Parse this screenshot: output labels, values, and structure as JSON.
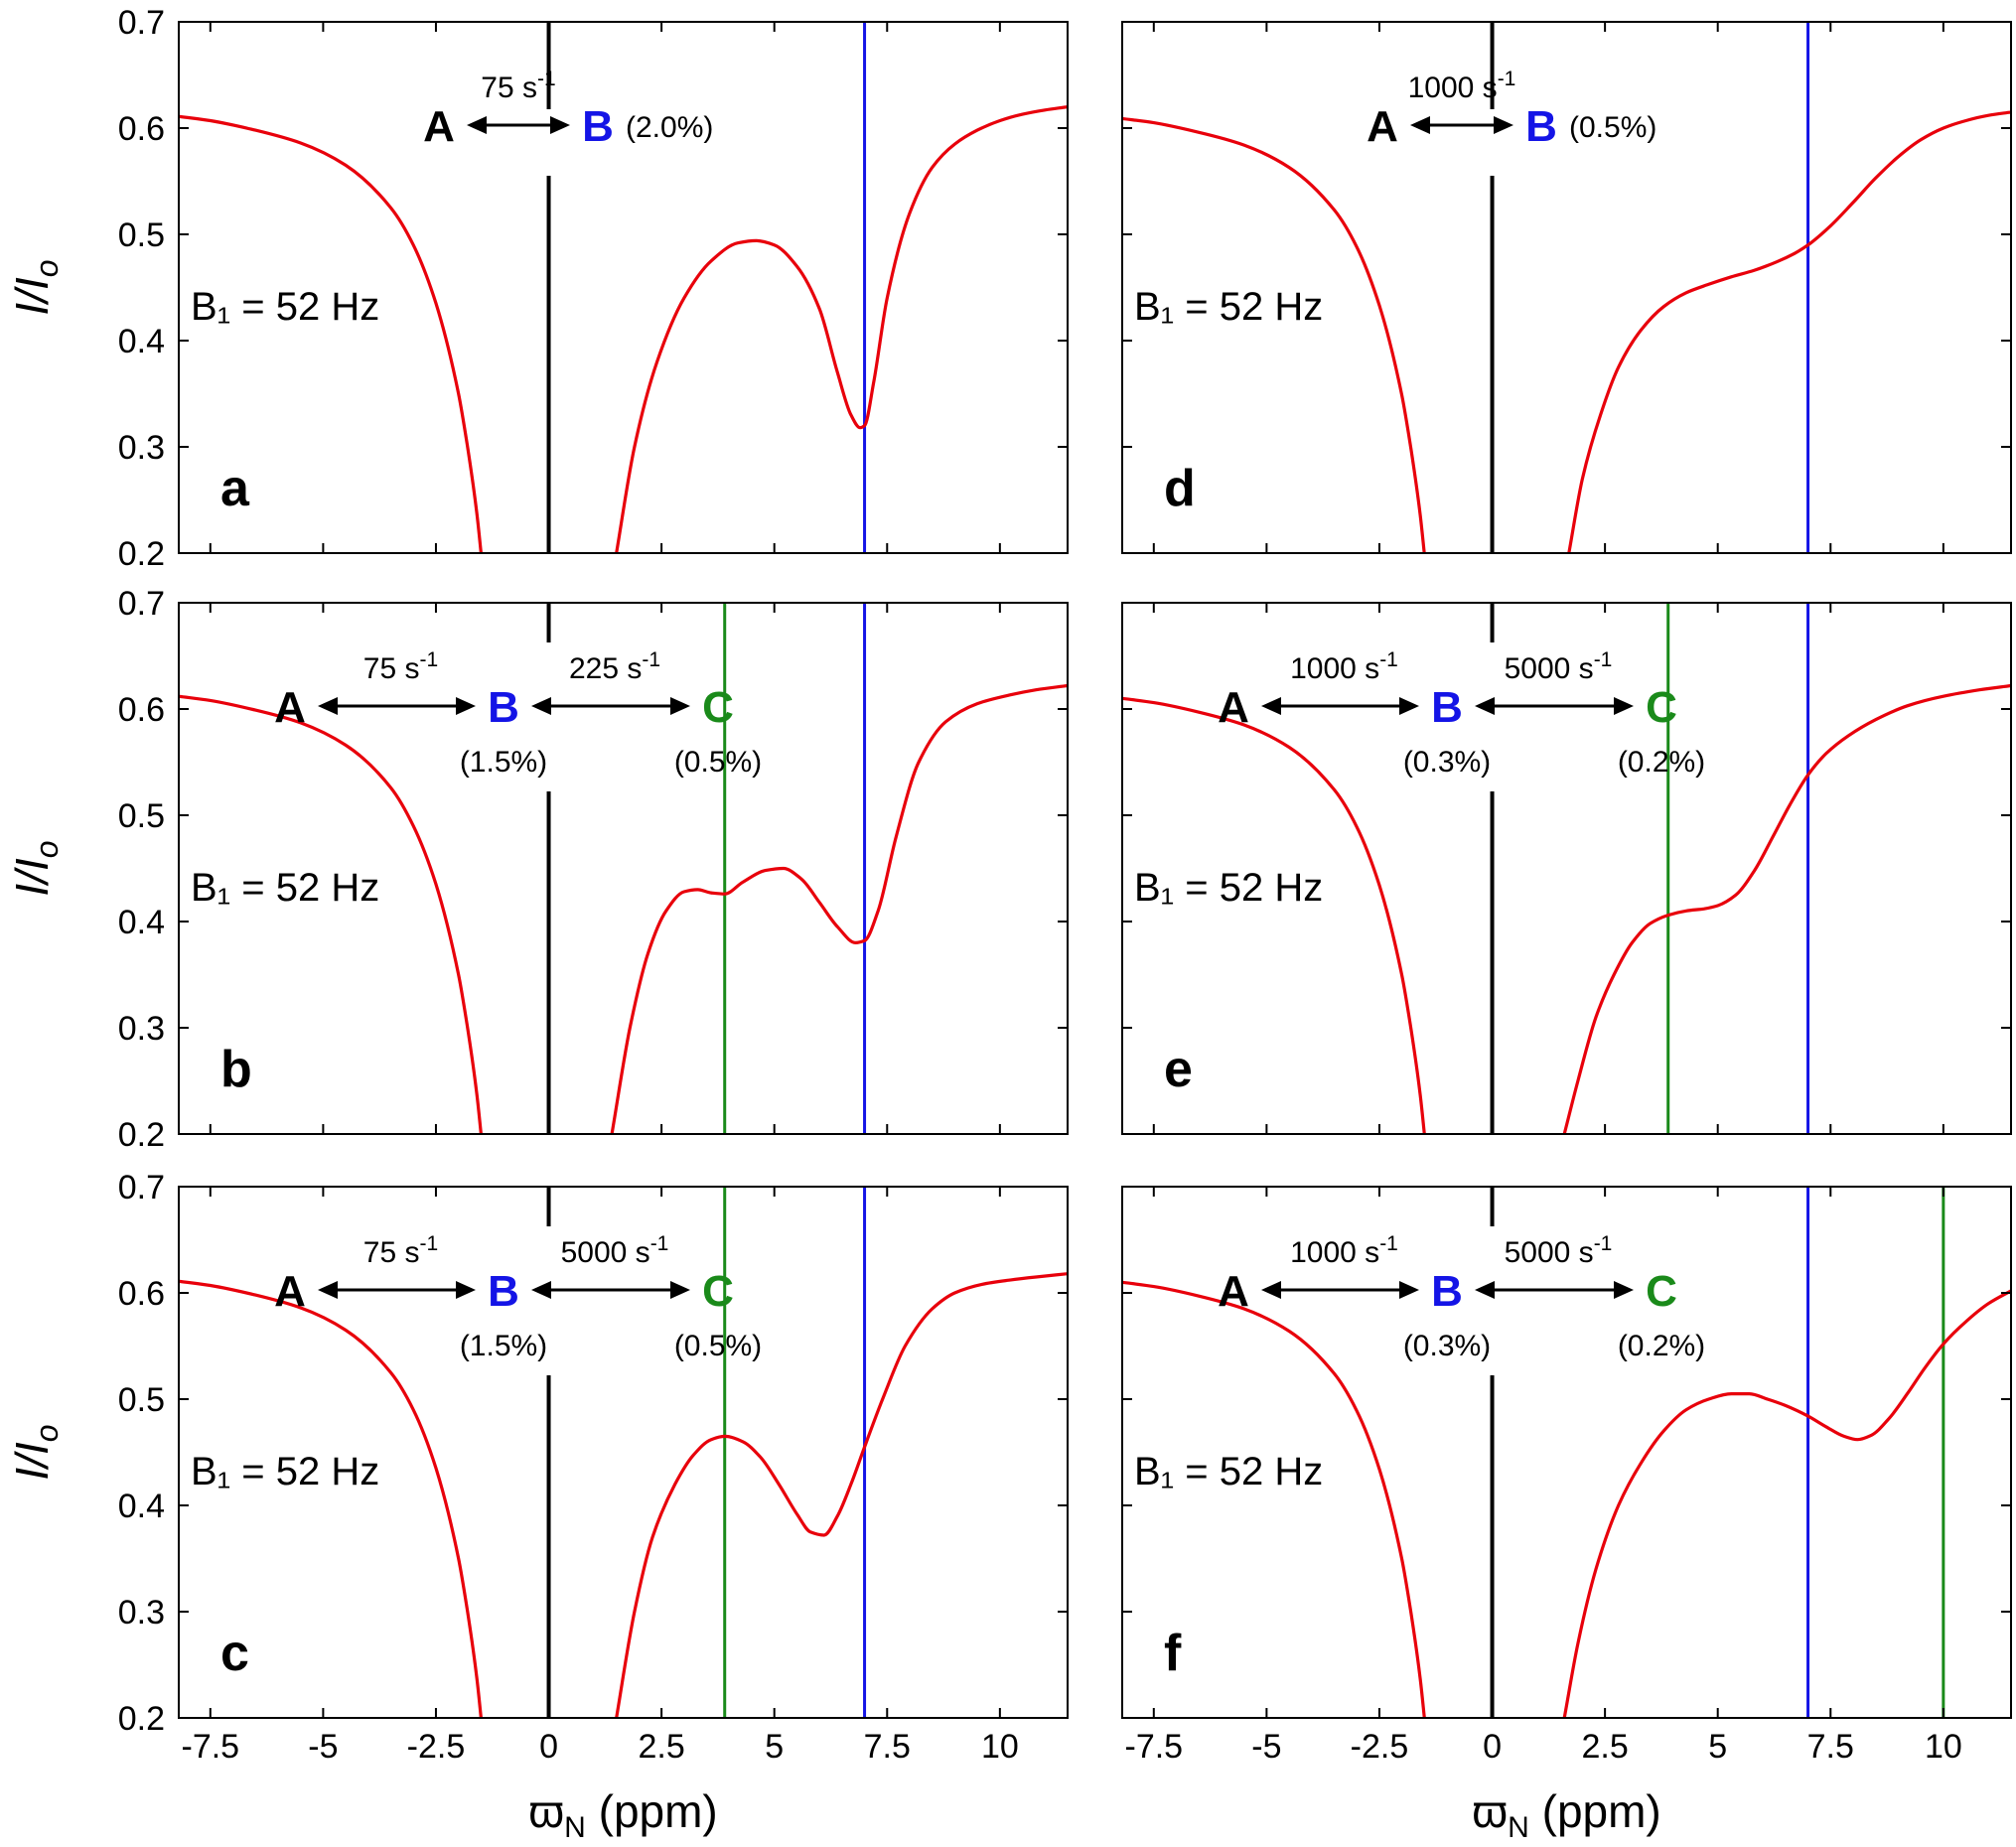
{
  "colors": {
    "curve": "#e8000b",
    "vline_major": "#000000",
    "vline_B": "#1414e6",
    "vline_C": "#1a8a1a",
    "state_A": "#000000",
    "state_B": "#1414e6",
    "state_C": "#1a8a1a",
    "axes": "#000000"
  },
  "axis_text": {
    "y_label": "I/I",
    "y_label_sub": "o",
    "x_label": "ϖ",
    "x_label_sub": "N",
    "x_label_unit": "(ppm)"
  },
  "chart_data": [
    {
      "type": "line",
      "panel": "a",
      "xlim": [
        -8.2,
        11.5
      ],
      "ylim": [
        0.2,
        0.7
      ],
      "x_ticks": [
        -7.5,
        -5,
        -2.5,
        0,
        2.5,
        5,
        7.5,
        10
      ],
      "x_tick_labels": [
        "-7.5",
        "-5",
        "-2.5",
        "0",
        "2.5",
        "5",
        "7.5",
        "10"
      ],
      "y_ticks": [
        0.2,
        0.3,
        0.4,
        0.5,
        0.6,
        0.7
      ],
      "y_tick_labels": [
        "0.2",
        "0.3",
        "0.4",
        "0.5",
        "0.6",
        "0.7"
      ],
      "show_x_tick_labels": false,
      "show_x_title": false,
      "b1_label": "B₁ = 52 Hz",
      "scheme": {
        "A": "A",
        "B": "B",
        "rate1": "75 s",
        "rate1_exp": "-1",
        "popB_inline": "(2.0%)"
      },
      "vlines": [
        {
          "x": 0,
          "role": "main"
        },
        {
          "x": 7,
          "role": "B"
        }
      ],
      "series": [
        {
          "name": "left",
          "x": [
            -8.2,
            -7.5,
            -6.5,
            -5.5,
            -4.5,
            -3.5,
            -3.0,
            -2.5,
            -2.0,
            -1.8,
            -1.6,
            -1.5
          ],
          "y": [
            0.611,
            0.607,
            0.598,
            0.586,
            0.565,
            0.525,
            0.49,
            0.435,
            0.35,
            0.3,
            0.24,
            0.2
          ]
        },
        {
          "name": "right",
          "x": [
            1.5,
            1.9,
            2.4,
            3.0,
            3.6,
            4.2,
            4.6,
            5.0,
            5.5,
            6.0,
            6.4,
            6.7,
            6.9,
            7.0,
            7.2,
            7.5,
            8.0,
            8.5,
            9.0,
            9.5,
            10.0,
            10.5,
            11.0,
            11.5
          ],
          "y": [
            0.2,
            0.3,
            0.38,
            0.44,
            0.475,
            0.492,
            0.494,
            0.49,
            0.47,
            0.43,
            0.37,
            0.33,
            0.318,
            0.32,
            0.36,
            0.44,
            0.52,
            0.563,
            0.585,
            0.598,
            0.607,
            0.613,
            0.617,
            0.62
          ]
        }
      ]
    },
    {
      "type": "line",
      "panel": "b",
      "xlim": [
        -8.2,
        11.5
      ],
      "ylim": [
        0.2,
        0.7
      ],
      "x_ticks": [
        -7.5,
        -5,
        -2.5,
        0,
        2.5,
        5,
        7.5,
        10
      ],
      "x_tick_labels": [
        "-7.5",
        "-5",
        "-2.5",
        "0",
        "2.5",
        "5",
        "7.5",
        "10"
      ],
      "y_ticks": [
        0.2,
        0.3,
        0.4,
        0.5,
        0.6,
        0.7
      ],
      "y_tick_labels": [
        "0.2",
        "0.3",
        "0.4",
        "0.5",
        "0.6",
        "0.7"
      ],
      "show_x_tick_labels": false,
      "show_x_title": false,
      "b1_label": "B₁ = 52 Hz",
      "scheme": {
        "A": "A",
        "B": "B",
        "C": "C",
        "rate1": "75 s",
        "rate1_exp": "-1",
        "rate2": "225 s",
        "rate2_exp": "-1",
        "popB": "(1.5%)",
        "popC": "(0.5%)"
      },
      "vlines": [
        {
          "x": 0,
          "role": "main"
        },
        {
          "x": 3.9,
          "role": "C"
        },
        {
          "x": 7,
          "role": "B"
        }
      ],
      "series": [
        {
          "name": "left",
          "x": [
            -8.2,
            -7.5,
            -6.5,
            -5.5,
            -4.5,
            -3.5,
            -3.0,
            -2.5,
            -2.0,
            -1.8,
            -1.6,
            -1.5
          ],
          "y": [
            0.612,
            0.608,
            0.599,
            0.587,
            0.566,
            0.526,
            0.49,
            0.435,
            0.35,
            0.3,
            0.24,
            0.2
          ]
        },
        {
          "name": "right",
          "x": [
            1.4,
            1.8,
            2.2,
            2.6,
            3.0,
            3.3,
            3.6,
            3.9,
            4.3,
            4.8,
            5.2,
            5.6,
            6.0,
            6.4,
            6.8,
            7.0,
            7.3,
            7.7,
            8.2,
            8.8,
            9.5,
            10.2,
            10.8,
            11.5
          ],
          "y": [
            0.2,
            0.3,
            0.37,
            0.41,
            0.428,
            0.43,
            0.427,
            0.426,
            0.437,
            0.448,
            0.45,
            0.44,
            0.418,
            0.395,
            0.38,
            0.382,
            0.41,
            0.48,
            0.55,
            0.588,
            0.605,
            0.613,
            0.618,
            0.622
          ]
        }
      ]
    },
    {
      "type": "line",
      "panel": "c",
      "xlim": [
        -8.2,
        11.5
      ],
      "ylim": [
        0.2,
        0.7
      ],
      "x_ticks": [
        -7.5,
        -5,
        -2.5,
        0,
        2.5,
        5,
        7.5,
        10
      ],
      "x_tick_labels": [
        "-7.5",
        "-5",
        "-2.5",
        "0",
        "2.5",
        "5",
        "7.5",
        "10"
      ],
      "y_ticks": [
        0.2,
        0.3,
        0.4,
        0.5,
        0.6,
        0.7
      ],
      "y_tick_labels": [
        "0.2",
        "0.3",
        "0.4",
        "0.5",
        "0.6",
        "0.7"
      ],
      "show_x_tick_labels": true,
      "show_x_title": true,
      "b1_label": "B₁ = 52 Hz",
      "scheme": {
        "A": "A",
        "B": "B",
        "C": "C",
        "rate1": "75 s",
        "rate1_exp": "-1",
        "rate2": "5000 s",
        "rate2_exp": "-1",
        "popB": "(1.5%)",
        "popC": "(0.5%)"
      },
      "vlines": [
        {
          "x": 0,
          "role": "main"
        },
        {
          "x": 3.9,
          "role": "C"
        },
        {
          "x": 7,
          "role": "B"
        }
      ],
      "series": [
        {
          "name": "left",
          "x": [
            -8.2,
            -7.5,
            -6.5,
            -5.5,
            -4.5,
            -3.5,
            -3.0,
            -2.5,
            -2.0,
            -1.8,
            -1.6,
            -1.5
          ],
          "y": [
            0.611,
            0.607,
            0.598,
            0.586,
            0.565,
            0.525,
            0.49,
            0.435,
            0.35,
            0.3,
            0.24,
            0.2
          ]
        },
        {
          "name": "right",
          "x": [
            1.5,
            1.9,
            2.3,
            2.8,
            3.2,
            3.6,
            3.9,
            4.3,
            4.7,
            5.1,
            5.5,
            5.8,
            6.1,
            6.4,
            6.7,
            7.0,
            7.4,
            7.9,
            8.5,
            9.0,
            9.6,
            10.2,
            10.8,
            11.5
          ],
          "y": [
            0.2,
            0.3,
            0.37,
            0.42,
            0.447,
            0.462,
            0.465,
            0.46,
            0.445,
            0.42,
            0.392,
            0.375,
            0.372,
            0.39,
            0.42,
            0.455,
            0.5,
            0.55,
            0.585,
            0.6,
            0.608,
            0.612,
            0.615,
            0.618
          ]
        }
      ]
    },
    {
      "type": "line",
      "panel": "d",
      "xlim": [
        -8.2,
        11.5
      ],
      "ylim": [
        0.2,
        0.7
      ],
      "x_ticks": [
        -7.5,
        -5,
        -2.5,
        0,
        2.5,
        5,
        7.5,
        10
      ],
      "x_tick_labels": [
        "-7.5",
        "-5",
        "-2.5",
        "0",
        "2.5",
        "5",
        "7.5",
        "10"
      ],
      "y_ticks": [
        0.2,
        0.3,
        0.4,
        0.5,
        0.6,
        0.7
      ],
      "y_tick_labels": [
        "0.2",
        "0.3",
        "0.4",
        "0.5",
        "0.6",
        "0.7"
      ],
      "show_x_tick_labels": false,
      "show_x_title": false,
      "b1_label": "B₁ = 52 Hz",
      "scheme": {
        "A": "A",
        "B": "B",
        "rate1": "1000 s",
        "rate1_exp": "-1",
        "popB_inline": "(0.5%)"
      },
      "vlines": [
        {
          "x": 0,
          "role": "main"
        },
        {
          "x": 7,
          "role": "B"
        }
      ],
      "series": [
        {
          "name": "left",
          "x": [
            -8.2,
            -7.5,
            -6.5,
            -5.5,
            -4.5,
            -3.5,
            -3.0,
            -2.5,
            -2.0,
            -1.8,
            -1.6,
            -1.5
          ],
          "y": [
            0.609,
            0.605,
            0.596,
            0.584,
            0.563,
            0.523,
            0.488,
            0.433,
            0.348,
            0.298,
            0.238,
            0.198
          ]
        },
        {
          "name": "right",
          "x": [
            1.7,
            2.0,
            2.4,
            2.8,
            3.3,
            3.8,
            4.3,
            4.8,
            5.3,
            5.8,
            6.3,
            6.7,
            7.0,
            7.5,
            8.0,
            8.5,
            9.0,
            9.5,
            10.0,
            10.5,
            11.0,
            11.5
          ],
          "y": [
            0.2,
            0.27,
            0.33,
            0.375,
            0.41,
            0.432,
            0.445,
            0.453,
            0.46,
            0.466,
            0.474,
            0.482,
            0.49,
            0.508,
            0.53,
            0.553,
            0.573,
            0.589,
            0.6,
            0.607,
            0.612,
            0.615
          ]
        }
      ]
    },
    {
      "type": "line",
      "panel": "e",
      "xlim": [
        -8.2,
        11.5
      ],
      "ylim": [
        0.2,
        0.7
      ],
      "x_ticks": [
        -7.5,
        -5,
        -2.5,
        0,
        2.5,
        5,
        7.5,
        10
      ],
      "x_tick_labels": [
        "-7.5",
        "-5",
        "-2.5",
        "0",
        "2.5",
        "5",
        "7.5",
        "10"
      ],
      "y_ticks": [
        0.2,
        0.3,
        0.4,
        0.5,
        0.6,
        0.7
      ],
      "y_tick_labels": [
        "0.2",
        "0.3",
        "0.4",
        "0.5",
        "0.6",
        "0.7"
      ],
      "show_x_tick_labels": false,
      "show_x_title": false,
      "b1_label": "B₁ = 52 Hz",
      "scheme": {
        "A": "A",
        "B": "B",
        "C": "C",
        "rate1": "1000 s",
        "rate1_exp": "-1",
        "rate2": "5000 s",
        "rate2_exp": "-1",
        "popB": "(0.3%)",
        "popC": "(0.2%)"
      },
      "vlines": [
        {
          "x": 0,
          "role": "main"
        },
        {
          "x": 3.9,
          "role": "C"
        },
        {
          "x": 7,
          "role": "B"
        }
      ],
      "series": [
        {
          "name": "left",
          "x": [
            -8.2,
            -7.5,
            -6.5,
            -5.5,
            -4.5,
            -3.5,
            -3.0,
            -2.5,
            -2.0,
            -1.8,
            -1.6,
            -1.5
          ],
          "y": [
            0.61,
            0.606,
            0.597,
            0.585,
            0.564,
            0.524,
            0.489,
            0.434,
            0.349,
            0.299,
            0.239,
            0.199
          ]
        },
        {
          "name": "right",
          "x": [
            1.6,
            1.9,
            2.3,
            2.7,
            3.1,
            3.5,
            3.9,
            4.3,
            4.7,
            5.0,
            5.4,
            5.8,
            6.2,
            6.6,
            7.0,
            7.4,
            7.9,
            8.5,
            9.2,
            10.0,
            10.8,
            11.5
          ],
          "y": [
            0.2,
            0.25,
            0.31,
            0.35,
            0.38,
            0.398,
            0.406,
            0.41,
            0.412,
            0.415,
            0.425,
            0.447,
            0.478,
            0.51,
            0.538,
            0.558,
            0.575,
            0.59,
            0.603,
            0.612,
            0.618,
            0.622
          ]
        }
      ]
    },
    {
      "type": "line",
      "panel": "f",
      "xlim": [
        -8.2,
        11.5
      ],
      "ylim": [
        0.2,
        0.7
      ],
      "x_ticks": [
        -7.5,
        -5,
        -2.5,
        0,
        2.5,
        5,
        7.5,
        10
      ],
      "x_tick_labels": [
        "-7.5",
        "-5",
        "-2.5",
        "0",
        "2.5",
        "5",
        "7.5",
        "10"
      ],
      "y_ticks": [
        0.2,
        0.3,
        0.4,
        0.5,
        0.6,
        0.7
      ],
      "y_tick_labels": [
        "0.2",
        "0.3",
        "0.4",
        "0.5",
        "0.6",
        "0.7"
      ],
      "show_x_tick_labels": true,
      "show_x_title": true,
      "b1_label": "B₁ = 52 Hz",
      "scheme": {
        "A": "A",
        "B": "B",
        "C": "C",
        "rate1": "1000 s",
        "rate1_exp": "-1",
        "rate2": "5000 s",
        "rate2_exp": "-1",
        "popB": "(0.3%)",
        "popC": "(0.2%)"
      },
      "vlines": [
        {
          "x": 0,
          "role": "main"
        },
        {
          "x": 7,
          "role": "B"
        },
        {
          "x": 10,
          "role": "C"
        }
      ],
      "series": [
        {
          "name": "left",
          "x": [
            -8.2,
            -7.5,
            -6.5,
            -5.5,
            -4.5,
            -3.5,
            -3.0,
            -2.5,
            -2.0,
            -1.8,
            -1.6,
            -1.5
          ],
          "y": [
            0.61,
            0.606,
            0.597,
            0.585,
            0.564,
            0.524,
            0.489,
            0.434,
            0.349,
            0.299,
            0.239,
            0.199
          ]
        },
        {
          "name": "right",
          "x": [
            1.6,
            1.9,
            2.3,
            2.8,
            3.3,
            3.8,
            4.3,
            4.8,
            5.3,
            5.7,
            6.1,
            6.5,
            7.0,
            7.4,
            7.8,
            8.1,
            8.4,
            8.8,
            9.2,
            9.6,
            10.0,
            10.5,
            11.0,
            11.5
          ],
          "y": [
            0.2,
            0.27,
            0.34,
            0.4,
            0.44,
            0.47,
            0.49,
            0.5,
            0.505,
            0.505,
            0.5,
            0.494,
            0.484,
            0.474,
            0.465,
            0.462,
            0.466,
            0.482,
            0.505,
            0.53,
            0.552,
            0.573,
            0.59,
            0.602
          ]
        }
      ]
    }
  ]
}
